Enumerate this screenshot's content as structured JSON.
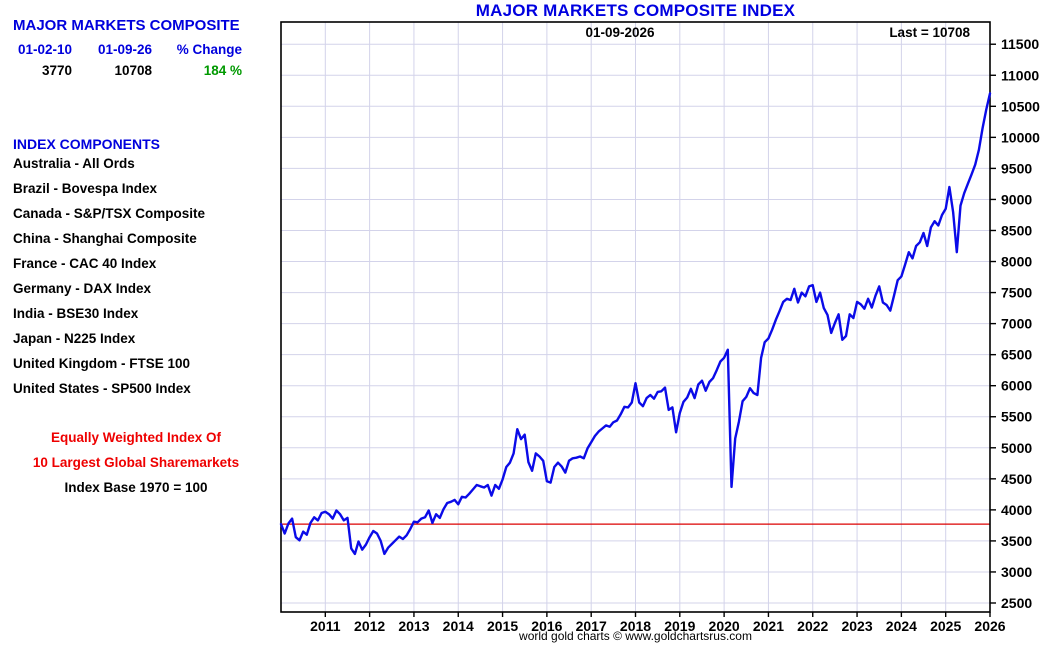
{
  "sidebar": {
    "title": "MAJOR MARKETS COMPOSITE",
    "summary": {
      "start_date": "01-02-10",
      "end_date": "01-09-26",
      "change_header": "% Change",
      "start_value": "3770",
      "end_value": "10708",
      "change_value": "184 %"
    },
    "components_title": "INDEX COMPONENTS",
    "components": [
      "Australia - All Ords",
      "Brazil - Bovespa Index",
      "Canada - S&P/TSX Composite",
      "China - Shanghai Composite",
      "France - CAC 40 Index",
      "Germany - DAX Index",
      "India - BSE30 Index",
      "Japan - N225 Index",
      "United Kingdom - FTSE 100",
      "United States - SP500 Index"
    ],
    "note_line1": "Equally Weighted Index Of",
    "note_line2": "10 Largest Global Sharemarkets",
    "note_line3": "Index Base 1970 = 100"
  },
  "chart": {
    "title": "MAJOR MARKETS COMPOSITE INDEX",
    "date_label": "01-09-2026",
    "last_label": "Last = 10708",
    "footer": "world gold charts © www.goldchartsrus.com"
  },
  "chart_data": {
    "type": "line",
    "title": "MAJOR MARKETS COMPOSITE INDEX",
    "x_start_year": 2010.0,
    "x_step_years": 0.0833333,
    "xlim": [
      2010.0,
      2026.0
    ],
    "ylim": [
      2355,
      11858
    ],
    "x_ticks": [
      2011,
      2012,
      2013,
      2014,
      2015,
      2016,
      2017,
      2018,
      2019,
      2020,
      2021,
      2022,
      2023,
      2024,
      2025,
      2026
    ],
    "y_ticks": [
      2500,
      3000,
      3500,
      4000,
      4500,
      5000,
      5500,
      6000,
      6500,
      7000,
      7500,
      8000,
      8500,
      9000,
      9500,
      10000,
      10500,
      11000,
      11500
    ],
    "baseline_value": 3770,
    "last_value": 10708,
    "grid": true,
    "legend": "none",
    "series": [
      {
        "name": "Major Markets Composite Index (monthly, Jan 2010 - Jan 2026)",
        "values": [
          3770,
          3620,
          3780,
          3860,
          3560,
          3510,
          3650,
          3600,
          3790,
          3880,
          3830,
          3950,
          3970,
          3930,
          3860,
          3990,
          3930,
          3830,
          3870,
          3380,
          3290,
          3490,
          3360,
          3440,
          3560,
          3660,
          3620,
          3500,
          3290,
          3390,
          3450,
          3510,
          3570,
          3530,
          3590,
          3690,
          3810,
          3800,
          3860,
          3880,
          3990,
          3790,
          3930,
          3870,
          4010,
          4110,
          4130,
          4160,
          4090,
          4210,
          4200,
          4260,
          4330,
          4400,
          4380,
          4360,
          4400,
          4230,
          4400,
          4340,
          4490,
          4690,
          4760,
          4910,
          5300,
          5140,
          5210,
          4770,
          4630,
          4910,
          4860,
          4790,
          4460,
          4440,
          4690,
          4760,
          4700,
          4600,
          4790,
          4830,
          4840,
          4860,
          4830,
          4990,
          5090,
          5190,
          5260,
          5310,
          5360,
          5340,
          5410,
          5440,
          5540,
          5660,
          5650,
          5730,
          6040,
          5730,
          5670,
          5800,
          5850,
          5790,
          5900,
          5910,
          5970,
          5610,
          5650,
          5250,
          5560,
          5740,
          5810,
          5950,
          5800,
          6020,
          6080,
          5920,
          6060,
          6120,
          6250,
          6390,
          6450,
          6580,
          4370,
          5150,
          5420,
          5750,
          5820,
          5960,
          5880,
          5850,
          6450,
          6700,
          6760,
          6900,
          7060,
          7200,
          7350,
          7400,
          7380,
          7560,
          7340,
          7500,
          7440,
          7600,
          7620,
          7350,
          7500,
          7250,
          7140,
          6850,
          7010,
          7150,
          6740,
          6800,
          7150,
          7090,
          7350,
          7310,
          7240,
          7400,
          7260,
          7450,
          7600,
          7340,
          7300,
          7210,
          7450,
          7700,
          7760,
          7950,
          8150,
          8050,
          8250,
          8310,
          8460,
          8250,
          8550,
          8650,
          8580,
          8750,
          8850,
          9200,
          8800,
          8150,
          8900,
          9100,
          9250,
          9400,
          9560,
          9800,
          10150,
          10450,
          10708
        ]
      }
    ],
    "colors": {
      "line": "#0b0be8",
      "baseline": "#dc0000",
      "grid": "#d3d3ea",
      "label_blue": "#0000dd",
      "title_blue": "#0000e0",
      "green": "#009900",
      "red_text": "#ee0000"
    }
  }
}
